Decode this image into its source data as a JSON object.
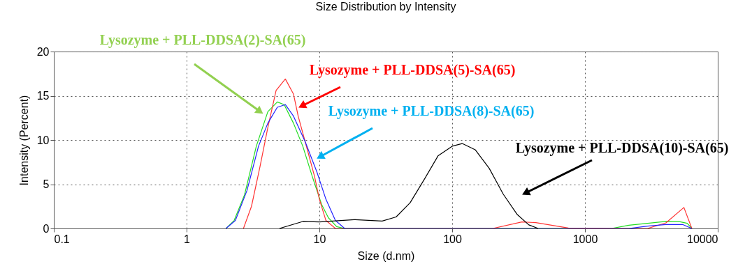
{
  "chart_data": {
    "type": "line",
    "title": "Size Distribution by Intensity",
    "xlabel": "Size (d.nm)",
    "ylabel": "Intensity (Percent)",
    "log": "x",
    "xlim": [
      0.1,
      10000
    ],
    "xticks": [
      0.1,
      1,
      10,
      100,
      1000,
      10000
    ],
    "ylim": [
      0,
      20
    ],
    "yticks": [
      0,
      5,
      10,
      15,
      20
    ],
    "grid": true,
    "legend": false,
    "marker": "none",
    "line_style": "solid",
    "series": [
      {
        "name": "Lysozyme + PLL-DDSA(2)-SA(65)",
        "color": "#22dd22",
        "x": [
          1.98,
          2.28,
          2.73,
          3.35,
          4.09,
          4.82,
          5.43,
          6.38,
          7.5,
          8.83,
          10.4,
          11.7,
          13.5,
          15.5,
          1585,
          2140,
          2960,
          4070,
          5200,
          5890,
          6380
        ],
        "values": [
          0,
          0.9,
          3.8,
          9.3,
          13.2,
          14.3,
          14.0,
          11.9,
          9.3,
          5.9,
          2.7,
          1.2,
          0.2,
          0,
          0,
          0.37,
          0.58,
          0.79,
          0.76,
          0.58,
          0
        ]
      },
      {
        "name": "Lysozyme + PLL-DDSA(5)-SA(65)",
        "color": "#ff3333",
        "x": [
          2.68,
          3.08,
          3.56,
          4.09,
          4.72,
          5.54,
          6.38,
          6.92,
          8.15,
          9.19,
          10.0,
          11.2,
          13.2,
          202,
          335,
          427,
          750,
          2960,
          4070,
          5560,
          6380
        ],
        "values": [
          0,
          2.5,
          6.9,
          11.4,
          15.6,
          16.9,
          15.2,
          12.7,
          8.8,
          5.9,
          3.3,
          0.9,
          0,
          0,
          0.74,
          0.66,
          0.05,
          0,
          0.63,
          2.37,
          0
        ]
      },
      {
        "name": "Lysozyme + PLL-DDSA(8)-SA(65)",
        "color": "#2222ff",
        "x": [
          1.98,
          2.33,
          2.85,
          3.48,
          4.09,
          4.82,
          5.54,
          6.38,
          7.82,
          9.57,
          11.2,
          13.2,
          15.5,
          2140,
          2960,
          4070,
          5430,
          6380
        ],
        "values": [
          0,
          0.9,
          4.3,
          9.3,
          11.9,
          13.7,
          14.0,
          12.7,
          9.8,
          6.4,
          3.3,
          0.9,
          0,
          0,
          0.26,
          0.45,
          0.45,
          0
        ]
      },
      {
        "name": "Lysozyme + PLL-DDSA(10)-SA(65)",
        "color": "#000000",
        "x": [
          5.0,
          7.5,
          10,
          18.3,
          29.7,
          37.8,
          48.2,
          61.4,
          78.2,
          100,
          119,
          149,
          190,
          242,
          308,
          378,
          444
        ],
        "values": [
          0,
          0.79,
          0.74,
          1.0,
          0.84,
          1.3,
          2.9,
          5.5,
          8.2,
          9.3,
          9.6,
          8.9,
          6.8,
          3.9,
          1.6,
          0.4,
          0
        ]
      }
    ]
  }
}
